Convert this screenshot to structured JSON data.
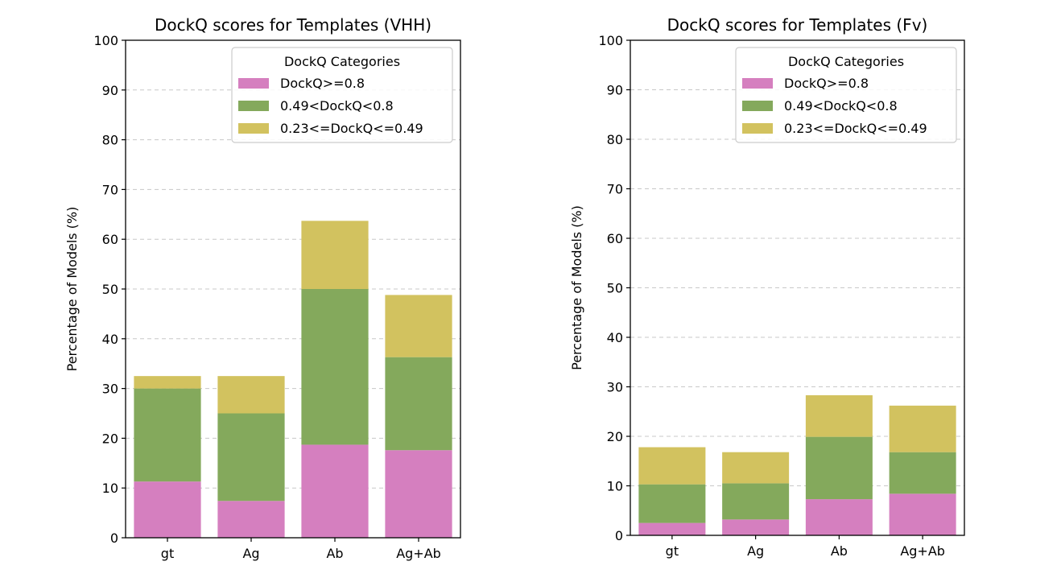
{
  "chart_data": [
    {
      "type": "bar",
      "stacked": true,
      "title": "DockQ scores for Templates (VHH)",
      "xlabel": "",
      "ylabel": "Percentage of Models (%)",
      "ylim": [
        0,
        100
      ],
      "yticks": [
        0,
        10,
        20,
        30,
        40,
        50,
        60,
        70,
        80,
        90,
        100
      ],
      "grid": "y-dashed",
      "categories": [
        "gt",
        "Ag",
        "Ab",
        "Ag+Ab"
      ],
      "legend": {
        "title": "DockQ Categories",
        "placement": "top-right"
      },
      "series": [
        {
          "name": "DockQ>=0.8",
          "color": "#d57fbf",
          "values": [
            11.3,
            7.4,
            18.7,
            17.6
          ]
        },
        {
          "name": "0.49<DockQ<0.8",
          "color": "#84a95c",
          "values": [
            18.7,
            17.6,
            31.3,
            18.7
          ]
        },
        {
          "name": "0.23<=DockQ<=0.49",
          "color": "#d2c25f",
          "values": [
            2.5,
            7.5,
            13.7,
            12.5
          ]
        }
      ]
    },
    {
      "type": "bar",
      "stacked": true,
      "title": "DockQ scores for Templates (Fv)",
      "xlabel": "",
      "ylabel": "Percentage of Models (%)",
      "ylim": [
        0,
        100
      ],
      "yticks": [
        0,
        10,
        20,
        30,
        40,
        50,
        60,
        70,
        80,
        90,
        100
      ],
      "grid": "y-dashed",
      "categories": [
        "gt",
        "Ag",
        "Ab",
        "Ag+Ab"
      ],
      "legend": {
        "title": "DockQ Categories",
        "placement": "top-right"
      },
      "series": [
        {
          "name": "DockQ>=0.8",
          "color": "#d57fbf",
          "values": [
            2.5,
            3.2,
            7.3,
            8.4
          ]
        },
        {
          "name": "0.49<DockQ<0.8",
          "color": "#84a95c",
          "values": [
            7.8,
            7.3,
            12.6,
            8.4
          ]
        },
        {
          "name": "0.23<=DockQ<=0.49",
          "color": "#d2c25f",
          "values": [
            7.5,
            6.3,
            8.4,
            9.4
          ]
        }
      ]
    }
  ]
}
